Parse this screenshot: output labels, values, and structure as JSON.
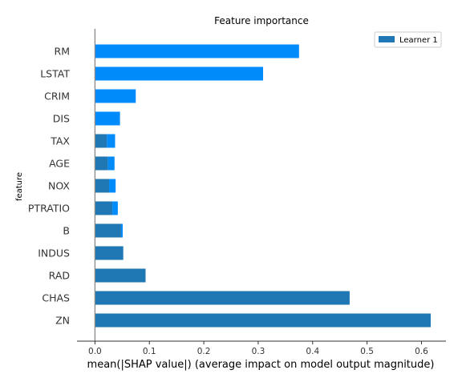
{
  "chart_data": {
    "type": "bar",
    "orientation": "horizontal",
    "title": "Feature importance",
    "xlabel": "mean(|SHAP value|) (average impact on model output magnitude)",
    "ylabel": "feature",
    "xlim": [
      -0.033,
      0.645
    ],
    "xticks": [
      "0.0",
      "0.1",
      "0.2",
      "0.3",
      "0.4",
      "0.5",
      "0.6"
    ],
    "categories": [
      "RM",
      "LSTAT",
      "CRIM",
      "DIS",
      "TAX",
      "AGE",
      "NOX",
      "PTRATIO",
      "B",
      "INDUS",
      "RAD",
      "CHAS",
      "ZN"
    ],
    "series": [
      {
        "name": "Learner 1",
        "color": "#1f77b4",
        "values": [
          0.0,
          0.0,
          0.0,
          0.0,
          0.022,
          0.024,
          0.026,
          0.032,
          0.048,
          0.052,
          0.093,
          0.468,
          0.617
        ]
      },
      {
        "name": "",
        "color": "#008bfb",
        "values": [
          0.375,
          0.309,
          0.075,
          0.046,
          0.015,
          0.012,
          0.012,
          0.01,
          0.003,
          0.0,
          0.0,
          0.0,
          0.0
        ]
      }
    ],
    "legend": "top-right",
    "grid": false
  }
}
